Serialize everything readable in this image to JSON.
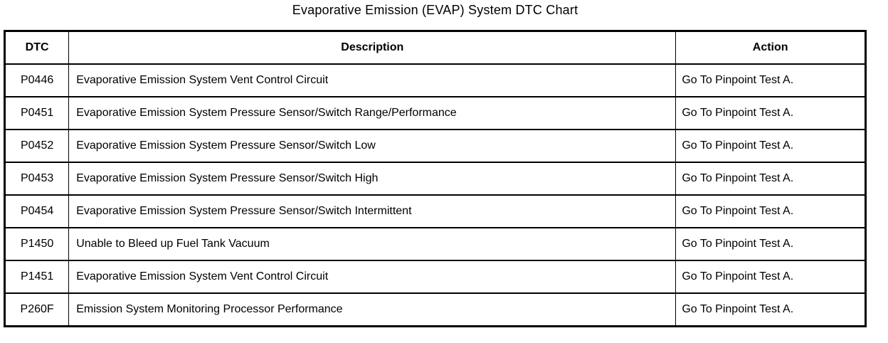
{
  "title": "Evaporative Emission (EVAP) System DTC Chart",
  "colors": {
    "text": "#000000",
    "background": "#ffffff",
    "border": "#000000"
  },
  "table": {
    "columns": [
      "DTC",
      "Description",
      "Action"
    ],
    "rows": [
      {
        "dtc": "P0446",
        "description": "Evaporative Emission System Vent Control Circuit",
        "action": "Go To Pinpoint Test A."
      },
      {
        "dtc": "P0451",
        "description": "Evaporative Emission System Pressure Sensor/Switch Range/Performance",
        "action": "Go To Pinpoint Test A."
      },
      {
        "dtc": "P0452",
        "description": "Evaporative Emission System Pressure Sensor/Switch Low",
        "action": "Go To Pinpoint Test A."
      },
      {
        "dtc": "P0453",
        "description": "Evaporative Emission System Pressure Sensor/Switch High",
        "action": "Go To Pinpoint Test A."
      },
      {
        "dtc": "P0454",
        "description": "Evaporative Emission System Pressure Sensor/Switch Intermittent",
        "action": "Go To Pinpoint Test A."
      },
      {
        "dtc": "P1450",
        "description": "Unable to Bleed up Fuel Tank Vacuum",
        "action": "Go To Pinpoint Test A."
      },
      {
        "dtc": "P1451",
        "description": "Evaporative Emission System Vent Control Circuit",
        "action": "Go To Pinpoint Test A."
      },
      {
        "dtc": "P260F",
        "description": "Emission System Monitoring Processor Performance",
        "action": "Go To Pinpoint Test A."
      }
    ]
  }
}
